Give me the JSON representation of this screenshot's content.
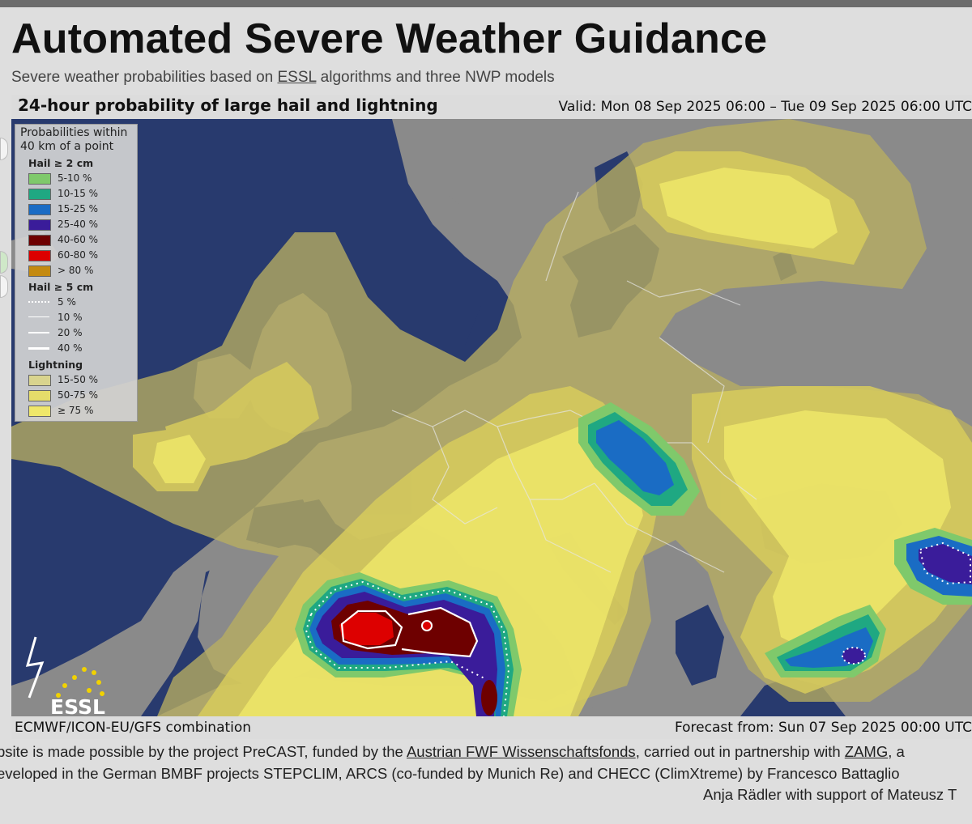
{
  "header": {
    "title": "Automated Severe Weather Guidance",
    "subtitle_before": "Severe weather probabilities based on ",
    "subtitle_link": "ESSL",
    "subtitle_after": " algorithms and three NWP models"
  },
  "map": {
    "title": "24-hour probability of large hail and lightning",
    "valid": "Valid: Mon 08 Sep 2025 06:00 – Tue 09 Sep 2025 06:00 UTC",
    "model": "ECMWF/ICON-EU/GFS combination",
    "forecast_from": "Forecast from: Sun 07 Sep 2025 00:00 UTC",
    "logo_text": "ESSL",
    "colors": {
      "sea": "#283a6e",
      "land": "#8a8a8a",
      "lightning_15_50": "#a79f5a",
      "lightning_50_75": "#d2c65a",
      "lightning_75": "#ece468"
    }
  },
  "legend": {
    "heading_line1": "Probabilities within",
    "heading_line2": "40 km of a point",
    "hail2_title": "Hail ≥ 2 cm",
    "hail2_items": [
      {
        "label": "5-10 %",
        "color": "#7fc96b"
      },
      {
        "label": "10-15 %",
        "color": "#1fa882"
      },
      {
        "label": "15-25 %",
        "color": "#1a6cc4"
      },
      {
        "label": "25-40 %",
        "color": "#3a1c9a"
      },
      {
        "label": "40-60 %",
        "color": "#6e0000"
      },
      {
        "label": "60-80 %",
        "color": "#dd0000"
      },
      {
        "label": "> 80 %",
        "color": "#c48a10"
      }
    ],
    "hail5_title": "Hail ≥ 5 cm",
    "hail5_items": [
      {
        "label": "5 %"
      },
      {
        "label": "10 %"
      },
      {
        "label": "20 %"
      },
      {
        "label": "40 %"
      }
    ],
    "lightning_title": "Lightning",
    "lightning_items": [
      {
        "label": "15-50 %",
        "color": "#d9d48e"
      },
      {
        "label": "50-75 %",
        "color": "#e5dc6a"
      },
      {
        "label": "≥ 75 %",
        "color": "#efe76a"
      }
    ]
  },
  "credits": {
    "line1_a": "bsite is made possible by the project PreCAST, funded by the ",
    "line1_link1": "Austrian FWF Wissenschaftsfonds",
    "line1_b": ", carried out in partnership with ",
    "line1_link2": "ZAMG",
    "line1_c": ", a",
    "line2": "eveloped in the German BMBF projects STEPCLIM, ARCS (co-funded by Munich Re) and CHECC (ClimXtreme) by Francesco Battaglio",
    "line3": "Anja Rädler with support of Mateusz T"
  }
}
